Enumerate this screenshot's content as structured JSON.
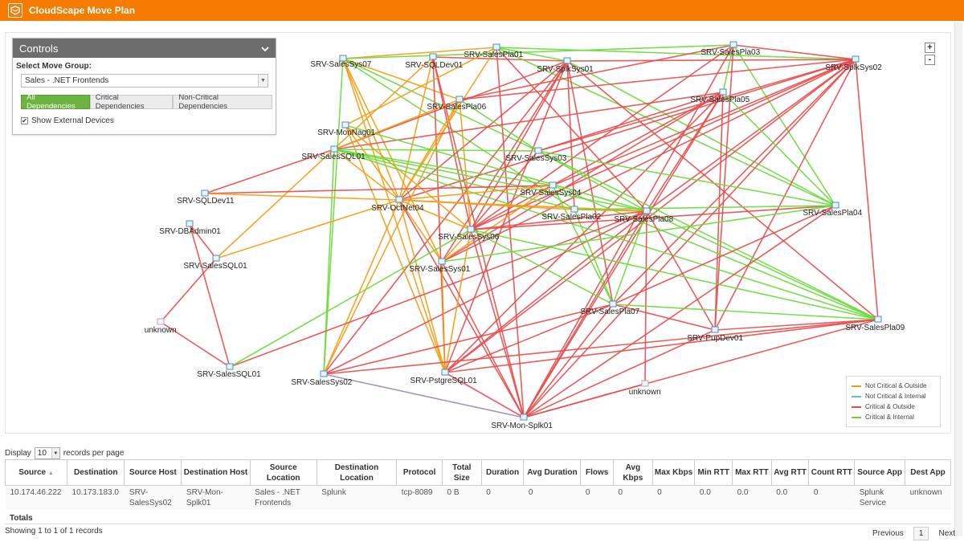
{
  "app": {
    "title": "CloudScape Move Plan"
  },
  "controls": {
    "title": "Controls",
    "move_group_label": "Select Move Group:",
    "move_group_value": "Sales - .NET Frontends",
    "filters": [
      "All Dependencies",
      "Critical Dependencies",
      "Non-Critical Dependencies"
    ],
    "show_external_label": "Show External Devices",
    "show_external_checked": "✔"
  },
  "zoom": {
    "in": "+",
    "out": "-"
  },
  "colors": {
    "not_critical_outside": "#f39c12",
    "not_critical_internal": "#5bc0de",
    "critical_outside": "#e84a4a",
    "critical_internal": "#6ad93b",
    "header": "#f57c00"
  },
  "legend": [
    {
      "label": "Not Critical & Outside",
      "color": "#f39c12"
    },
    {
      "label": "Not Critical & Internal",
      "color": "#5bc0de"
    },
    {
      "label": "Critical & Outside",
      "color": "#e84a4a"
    },
    {
      "label": "Critical & Internal",
      "color": "#6ad93b"
    }
  ],
  "graph": {
    "nodes": [
      {
        "id": "ss07",
        "label": "SRV-SalesSys07"
      },
      {
        "id": "sqld01",
        "label": "SRV-SQLDev01"
      },
      {
        "id": "sp01",
        "label": "SRV-SalesPla01"
      },
      {
        "id": "spl01",
        "label": "SRV-SplkSys01"
      },
      {
        "id": "sp03",
        "label": "SRV-SalesPla03"
      },
      {
        "id": "spl02",
        "label": "SRV-SplkSys02"
      },
      {
        "id": "sp06",
        "label": "SRV-SalesPla06"
      },
      {
        "id": "sp05",
        "label": "SRV-SalesPla05"
      },
      {
        "id": "mon",
        "label": "SRV-MonNag01"
      },
      {
        "id": "ssql01a",
        "label": "SRV-SalesSQL01"
      },
      {
        "id": "ss03",
        "label": "SRV-SalesSys03"
      },
      {
        "id": "sqld11",
        "label": "SRV-SQLDev11"
      },
      {
        "id": "oct",
        "label": "SRV-OctNet04"
      },
      {
        "id": "ss04",
        "label": "SRV-SalesSys04"
      },
      {
        "id": "sp02",
        "label": "SRV-SalesPla02"
      },
      {
        "id": "sp08",
        "label": "SRV-SalesPla08"
      },
      {
        "id": "sp04",
        "label": "SRV-SalesPla04"
      },
      {
        "id": "dba",
        "label": "SRV-DBAdmin01"
      },
      {
        "id": "ss06",
        "label": "SRV-SalesSys06"
      },
      {
        "id": "ssql01b",
        "label": "SRV-SalesSQL01"
      },
      {
        "id": "ss01",
        "label": "SRV-SalesSys01"
      },
      {
        "id": "unk1",
        "label": "unknown"
      },
      {
        "id": "sp07",
        "label": "SRV-SalesPla07"
      },
      {
        "id": "sp09",
        "label": "SRV-SalesPla09"
      },
      {
        "id": "pup",
        "label": "SRV-PupDev01"
      },
      {
        "id": "ssql01c",
        "label": "SRV-SalesSQL01"
      },
      {
        "id": "ss02",
        "label": "SRV-SalesSys02"
      },
      {
        "id": "pg",
        "label": "SRV-PstgreSQL01"
      },
      {
        "id": "unk2",
        "label": "unknown"
      },
      {
        "id": "monsplk",
        "label": "SRV-Mon-Splk01"
      }
    ],
    "edges": [
      [
        "ss07",
        "oct",
        "o"
      ],
      [
        "ss07",
        "pg",
        "o"
      ],
      [
        "ss07",
        "ss01",
        "o"
      ],
      [
        "ss07",
        "sp06",
        "o"
      ],
      [
        "ss07",
        "sp02",
        "g"
      ],
      [
        "ss07",
        "ss02",
        "g"
      ],
      [
        "ss07",
        "ss03",
        "g"
      ],
      [
        "ss07",
        "sp01",
        "o"
      ],
      [
        "sqld01",
        "oct",
        "o"
      ],
      [
        "sqld01",
        "ssql01b",
        "o"
      ],
      [
        "sqld01",
        "pg",
        "r"
      ],
      [
        "sqld01",
        "spl01",
        "r"
      ],
      [
        "sqld01",
        "monsplk",
        "r"
      ],
      [
        "sqld01",
        "ss06",
        "r"
      ],
      [
        "sp01",
        "spl02",
        "g"
      ],
      [
        "sp01",
        "oct",
        "o"
      ],
      [
        "sp01",
        "monsplk",
        "r"
      ],
      [
        "sp01",
        "sp08",
        "r"
      ],
      [
        "sp01",
        "sp04",
        "g"
      ],
      [
        "sp01",
        "mon",
        "o"
      ],
      [
        "sp01",
        "spl01",
        "g"
      ],
      [
        "spl01",
        "ss02",
        "r"
      ],
      [
        "spl01",
        "pg",
        "r"
      ],
      [
        "spl01",
        "oct",
        "r"
      ],
      [
        "spl01",
        "ss06",
        "r"
      ],
      [
        "spl01",
        "sp07",
        "r"
      ],
      [
        "spl01",
        "sp09",
        "r"
      ],
      [
        "spl01",
        "ssql01a",
        "r"
      ],
      [
        "spl01",
        "sp02",
        "r"
      ],
      [
        "spl01",
        "spl02",
        "r"
      ],
      [
        "spl01",
        "sp04",
        "g"
      ],
      [
        "spl01",
        "ss01",
        "r"
      ],
      [
        "sp03",
        "spl02",
        "r"
      ],
      [
        "sp03",
        "sp06",
        "r"
      ],
      [
        "sp03",
        "sp05",
        "g"
      ],
      [
        "sp03",
        "sp04",
        "g"
      ],
      [
        "sp03",
        "monsplk",
        "r"
      ],
      [
        "sp03",
        "ss07",
        "g"
      ],
      [
        "sp03",
        "ss06",
        "r"
      ],
      [
        "sp03",
        "pup",
        "r"
      ],
      [
        "spl02",
        "sp06",
        "r"
      ],
      [
        "spl02",
        "ss04",
        "r"
      ],
      [
        "spl02",
        "sp08",
        "r"
      ],
      [
        "spl02",
        "ss06",
        "r"
      ],
      [
        "spl02",
        "sp07",
        "r"
      ],
      [
        "spl02",
        "pup",
        "r"
      ],
      [
        "spl02",
        "sp09",
        "r"
      ],
      [
        "spl02",
        "monsplk",
        "r"
      ],
      [
        "spl02",
        "ss01",
        "r"
      ],
      [
        "spl02",
        "oct",
        "r"
      ],
      [
        "spl02",
        "pg",
        "r"
      ],
      [
        "spl02",
        "ss03",
        "r"
      ],
      [
        "sp06",
        "ss02",
        "o"
      ],
      [
        "sp06",
        "ssql01a",
        "o"
      ],
      [
        "sp06",
        "ss03",
        "g"
      ],
      [
        "sp06",
        "oct",
        "o"
      ],
      [
        "sp06",
        "ss06",
        "o"
      ],
      [
        "sp05",
        "sp04",
        "g"
      ],
      [
        "sp05",
        "monsplk",
        "r"
      ],
      [
        "sp05",
        "ss06",
        "r"
      ],
      [
        "sp05",
        "sp08",
        "r"
      ],
      [
        "sp05",
        "ssql01a",
        "r"
      ],
      [
        "sp05",
        "ss01",
        "r"
      ],
      [
        "sp05",
        "pup",
        "r"
      ],
      [
        "sp05",
        "ss03",
        "r"
      ],
      [
        "sp05",
        "pg",
        "r"
      ],
      [
        "mon",
        "oct",
        "o"
      ],
      [
        "mon",
        "pg",
        "o"
      ],
      [
        "mon",
        "sp08",
        "g"
      ],
      [
        "mon",
        "ss06",
        "o"
      ],
      [
        "ssql01a",
        "ss03",
        "g"
      ],
      [
        "ssql01a",
        "oct",
        "o"
      ],
      [
        "ssql01a",
        "sp08",
        "g"
      ],
      [
        "ssql01a",
        "ss02",
        "g"
      ],
      [
        "ssql01a",
        "sqld11",
        "r"
      ],
      [
        "ssql01a",
        "ss04",
        "g"
      ],
      [
        "ssql01a",
        "sp09",
        "g"
      ],
      [
        "ssql01a",
        "sp02",
        "g"
      ],
      [
        "ss03",
        "sp08",
        "g"
      ],
      [
        "ss03",
        "sp09",
        "g"
      ],
      [
        "ss03",
        "ss06",
        "r"
      ],
      [
        "ss03",
        "sp04",
        "g"
      ],
      [
        "sqld11",
        "ss04",
        "r"
      ],
      [
        "sqld11",
        "oct",
        "o"
      ],
      [
        "oct",
        "ss04",
        "o"
      ],
      [
        "oct",
        "sp02",
        "o"
      ],
      [
        "oct",
        "ss01",
        "o"
      ],
      [
        "oct",
        "pg",
        "o"
      ],
      [
        "oct",
        "ss02",
        "o"
      ],
      [
        "oct",
        "monsplk",
        "r"
      ],
      [
        "oct",
        "ssql01b",
        "o"
      ],
      [
        "oct",
        "ss06",
        "o"
      ],
      [
        "oct",
        "sp08",
        "o"
      ],
      [
        "ss04",
        "ss01",
        "o"
      ],
      [
        "ss04",
        "sp07",
        "g"
      ],
      [
        "ss04",
        "sp09",
        "g"
      ],
      [
        "sp02",
        "sp08",
        "o"
      ],
      [
        "sp02",
        "sp07",
        "g"
      ],
      [
        "sp08",
        "monsplk",
        "r"
      ],
      [
        "sp08",
        "pup",
        "r"
      ],
      [
        "sp08",
        "sp07",
        "g"
      ],
      [
        "sp08",
        "sp09",
        "g"
      ],
      [
        "sp08",
        "unk2",
        "r"
      ],
      [
        "sp08",
        "ss02",
        "r"
      ],
      [
        "sp08",
        "pg",
        "r"
      ],
      [
        "sp08",
        "ssql01c",
        "r"
      ],
      [
        "sp08",
        "ss06",
        "r"
      ],
      [
        "sp04",
        "monsplk",
        "r"
      ],
      [
        "sp04",
        "ss06",
        "r"
      ],
      [
        "sp04",
        "sp07",
        "r"
      ],
      [
        "sp04",
        "ss01",
        "g"
      ],
      [
        "sp04",
        "sp02",
        "g"
      ],
      [
        "dba",
        "ssql01b",
        "r"
      ],
      [
        "dba",
        "ssql01c",
        "r"
      ],
      [
        "ss06",
        "ss01",
        "o"
      ],
      [
        "ss06",
        "sp07",
        "g"
      ],
      [
        "ss06",
        "sp09",
        "g"
      ],
      [
        "ss06",
        "monsplk",
        "r"
      ],
      [
        "ss06",
        "ssql01c",
        "g"
      ],
      [
        "ss06",
        "pg",
        "o"
      ],
      [
        "ss01",
        "pg",
        "o"
      ],
      [
        "ss01",
        "monsplk",
        "r"
      ],
      [
        "unk1",
        "ssql01c",
        "r"
      ],
      [
        "unk1",
        "ssql01b",
        "r"
      ],
      [
        "sp07",
        "monsplk",
        "r"
      ],
      [
        "sp07",
        "sp09",
        "g"
      ],
      [
        "sp07",
        "pup",
        "r"
      ],
      [
        "sp07",
        "ss02",
        "r"
      ],
      [
        "sp07",
        "pg",
        "r"
      ],
      [
        "sp09",
        "monsplk",
        "r"
      ],
      [
        "sp09",
        "pg",
        "r"
      ],
      [
        "sp09",
        "ss02",
        "r"
      ],
      [
        "sp09",
        "pup",
        "r"
      ],
      [
        "pup",
        "monsplk",
        "r"
      ],
      [
        "ss02",
        "monsplk",
        "p"
      ],
      [
        "pg",
        "monsplk",
        "r"
      ],
      [
        "unk2",
        "monsplk",
        "r"
      ]
    ]
  },
  "table": {
    "display_label": "Display",
    "per_page_value": "10",
    "per_page_suffix": "records per page",
    "columns": [
      "Source",
      "Destination",
      "Source Host",
      "Destination Host",
      "Source Location",
      "Destination Location",
      "Protocol",
      "Total Size",
      "Duration",
      "Avg Duration",
      "Flows",
      "Avg Kbps",
      "Max Kbps",
      "Min RTT",
      "Max RTT",
      "Avg RTT",
      "Count RTT",
      "Source App",
      "Dest App"
    ],
    "rows": [
      [
        "10.174.46.222",
        "10.173.183.0",
        "SRV-SalesSys02",
        "SRV-Mon-Splk01",
        "Sales - .NET Frontends",
        "Splunk",
        "tcp-8089",
        "0 B",
        "0",
        "0",
        "0",
        "0",
        "0",
        "0.0",
        "0.0",
        "0.0",
        "0",
        "Splunk Service",
        "unknown"
      ]
    ],
    "totals_label": "Totals",
    "showing_label": "Showing 1 to 1 of 1 records",
    "pager": {
      "prev": "Previous",
      "current": "1",
      "next": "Next"
    }
  }
}
